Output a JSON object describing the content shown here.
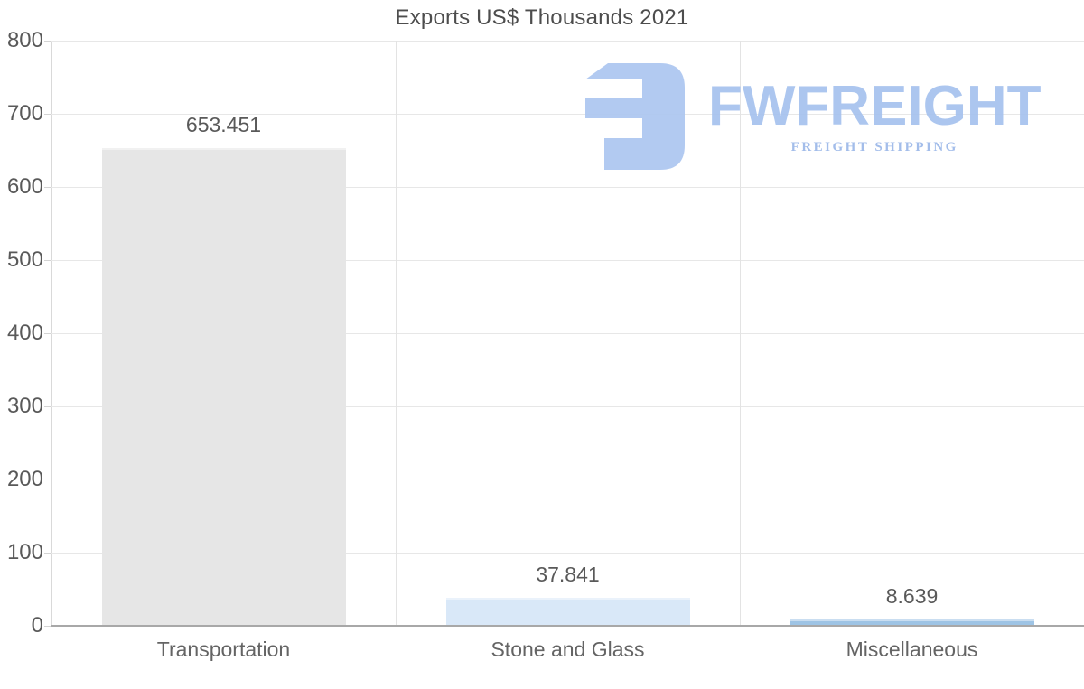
{
  "title": "Exports US$ Thousands 2021",
  "logo": {
    "name": "FWFREIGHT",
    "tagline": "FREIGHT SHIPPING",
    "mark_color": "#adc7f0",
    "wordmark_color": "#a6c2ee",
    "tagline_color": "#9db9e9"
  },
  "colors": {
    "title_text": "#4d4d4d",
    "tick_label": "#595959",
    "value_label": "#595959",
    "category_label": "#646464",
    "gridline": "#e7e7e7",
    "axis_line": "#d9d9d9",
    "baseline": "#a8a8a8",
    "separator": "#e3e3e3",
    "background": "#ffffff"
  },
  "chart_data": {
    "type": "bar",
    "title": "Exports US$ Thousands 2021",
    "categories": [
      "Transportation",
      "Stone and Glass",
      "Miscellaneous"
    ],
    "values": [
      653.451,
      37.841,
      8.639
    ],
    "value_labels": [
      "653.451",
      "37.841",
      "8.639"
    ],
    "bar_colors": [
      "#e6e6e6",
      "#d9e8f8",
      "#9ec4e5"
    ],
    "xlabel": "",
    "ylabel": "",
    "ylim": [
      0,
      800
    ],
    "yticks": [
      0,
      100,
      200,
      300,
      400,
      500,
      600,
      700,
      800
    ],
    "grid": "horizontal-100s-and-category-separators",
    "legend": "none"
  }
}
